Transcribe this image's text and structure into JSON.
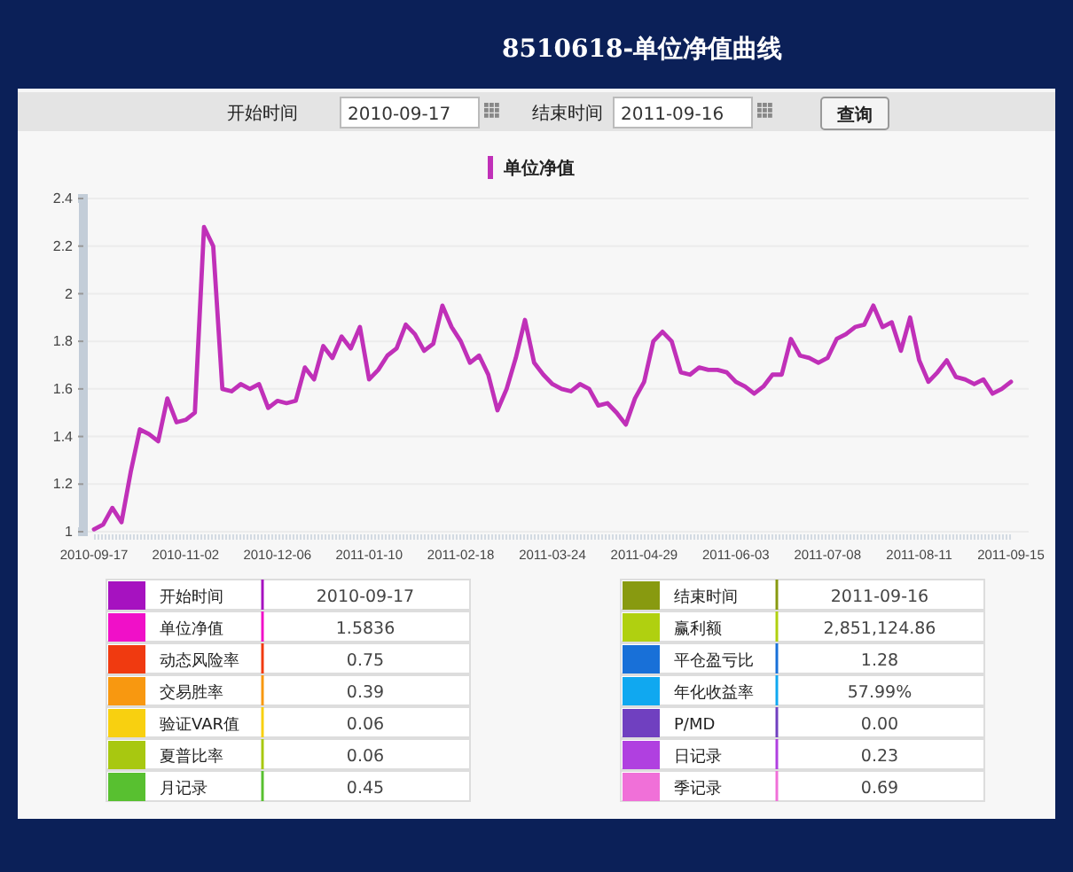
{
  "chart_data": [
    {
      "type": "line",
      "title": "8510618-单位净值曲线",
      "annotations": [
        "开始时间",
        "2010-09-17",
        "结束时间",
        "2011-09-16",
        "查询"
      ],
      "categories": [
        "2010-09-17",
        null,
        null,
        null,
        null,
        null,
        null,
        null,
        null,
        null,
        "2010-11-02",
        null,
        null,
        null,
        null,
        null,
        null,
        null,
        null,
        null,
        "2010-12-06",
        null,
        null,
        null,
        null,
        null,
        null,
        null,
        null,
        null,
        "2011-01-10",
        null,
        null,
        null,
        null,
        null,
        null,
        null,
        null,
        null,
        "2011-02-18",
        null,
        null,
        null,
        null,
        null,
        null,
        null,
        null,
        null,
        "2011-03-24",
        null,
        null,
        null,
        null,
        null,
        null,
        null,
        null,
        null,
        "2011-04-29",
        null,
        null,
        null,
        null,
        null,
        null,
        null,
        null,
        null,
        "2011-06-03",
        null,
        null,
        null,
        null,
        null,
        null,
        null,
        null,
        null,
        "2011-07-08",
        null,
        null,
        null,
        null,
        null,
        null,
        null,
        null,
        null,
        "2011-08-11",
        null,
        null,
        null,
        null,
        null,
        null,
        null,
        null,
        null,
        "2011-09-15"
      ],
      "series": [
        {
          "name": "单位净值",
          "color": "#c030b8",
          "values": [
            1.01,
            1.03,
            1.1,
            1.04,
            1.25,
            1.43,
            1.41,
            1.38,
            1.56,
            1.46,
            1.47,
            1.5,
            2.28,
            2.2,
            1.6,
            1.59,
            1.62,
            1.6,
            1.62,
            1.52,
            1.55,
            1.54,
            1.55,
            1.69,
            1.64,
            1.78,
            1.73,
            1.82,
            1.77,
            1.86,
            1.64,
            1.68,
            1.74,
            1.77,
            1.87,
            1.83,
            1.76,
            1.79,
            1.95,
            1.86,
            1.8,
            1.71,
            1.74,
            1.66,
            1.51,
            1.6,
            1.73,
            1.89,
            1.71,
            1.66,
            1.62,
            1.6,
            1.59,
            1.62,
            1.6,
            1.53,
            1.54,
            1.5,
            1.45,
            1.56,
            1.63,
            1.8,
            1.84,
            1.8,
            1.67,
            1.66,
            1.69,
            1.68,
            1.68,
            1.67,
            1.63,
            1.61,
            1.58,
            1.61,
            1.66,
            1.66,
            1.81,
            1.74,
            1.73,
            1.71,
            1.73,
            1.81,
            1.83,
            1.86,
            1.87,
            1.95,
            1.86,
            1.88,
            1.76,
            1.9,
            1.72,
            1.63,
            1.67,
            1.72,
            1.65,
            1.64,
            1.62,
            1.64,
            1.58,
            1.6,
            1.63
          ]
        }
      ],
      "ylim": [
        1,
        2.4
      ],
      "yticks": [
        1,
        1.2,
        1.4,
        1.6,
        1.8,
        2,
        2.2,
        2.4
      ],
      "grid": "y",
      "legend": "top",
      "marker": "none",
      "line_style": "solid"
    },
    {
      "type": "other",
      "annotations": [
        "开始时间",
        "2010-09-17",
        "单位净值",
        "1.5836",
        "动态风险率",
        "0.75",
        "交易胜率",
        "0.39",
        "验证VAR值",
        "0.06",
        "夏普比率",
        "0.06",
        "月记录",
        "0.45",
        "结束时间",
        "2011-09-16",
        "赢利额",
        "2,851,124.86",
        "平仓盈亏比",
        "1.28",
        "年化收益率",
        "57.99%",
        "P/MD",
        "0.00",
        "日记录",
        "0.23",
        "季记录",
        "0.69"
      ],
      "colors": [
        "#a612c0",
        "#f010c8",
        "#f03a10",
        "#f89810",
        "#f8d010",
        "#a8c810",
        "#58c030",
        "#889a10",
        "#b0d010",
        "#1870d8",
        "#10a8f0",
        "#7040c0",
        "#b040e0",
        "#f070d8"
      ]
    }
  ]
}
